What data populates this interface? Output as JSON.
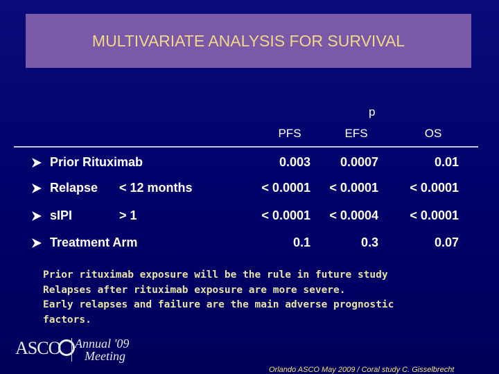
{
  "header": {
    "title": "MULTIVARIATE ANALYSIS FOR SURVIVAL"
  },
  "table": {
    "group_header": "p",
    "columns": [
      "PFS",
      "EFS",
      "OS"
    ],
    "rows": [
      {
        "label": "Prior Rituximab",
        "values": [
          "0.003",
          "0.0007",
          "0.01"
        ]
      },
      {
        "label": "Relapse",
        "qualifier": "< 12 months",
        "values": [
          "< 0.0001",
          "< 0.0001",
          "< 0.0001"
        ]
      },
      {
        "label": "sIPI",
        "qualifier": "> 1",
        "values": [
          "< 0.0001",
          "< 0.0004",
          "< 0.0001"
        ]
      },
      {
        "label": "Treatment Arm",
        "values": [
          "0.1",
          "0.3",
          "0.07"
        ]
      }
    ]
  },
  "notes": [
    "Prior rituximab exposure will be the rule in future study",
    "Relapses after rituximab exposure are more severe.",
    "Early relapses and failure are the main adverse prognostic",
    "factors."
  ],
  "footer": {
    "logo": "ASCO",
    "meeting_line1": "Annual '09",
    "meeting_line2": "Meeting",
    "citation": "Orlando ASCO May 2009 / Coral study C. Gisselbrecht"
  }
}
